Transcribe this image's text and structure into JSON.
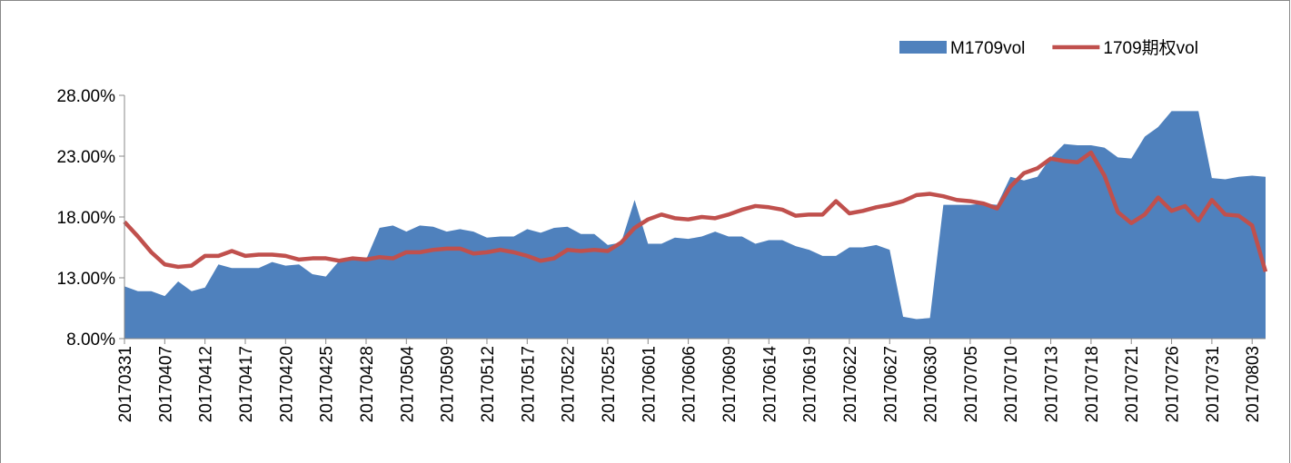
{
  "chart_data": {
    "type": "area-line",
    "categories": [
      "20170331",
      null,
      null,
      "20170407",
      null,
      null,
      "20170412",
      null,
      null,
      "20170417",
      null,
      null,
      "20170420",
      null,
      null,
      "20170425",
      null,
      null,
      "20170428",
      null,
      null,
      "20170504",
      null,
      null,
      "20170509",
      null,
      null,
      "20170512",
      null,
      null,
      "20170517",
      null,
      null,
      "20170522",
      null,
      null,
      "20170525",
      null,
      null,
      "20170601",
      null,
      null,
      "20170606",
      null,
      null,
      "20170609",
      null,
      null,
      "20170614",
      null,
      null,
      "20170619",
      null,
      null,
      "20170622",
      null,
      null,
      "20170627",
      null,
      null,
      "20170630",
      null,
      null,
      "20170705",
      null,
      null,
      "20170710",
      null,
      null,
      "20170713",
      null,
      null,
      "20170718",
      null,
      null,
      "20170721",
      null,
      null,
      "20170726",
      null,
      null,
      "20170731",
      null,
      null,
      "20170803",
      null
    ],
    "series": [
      {
        "name": "M1709vol",
        "color": "#4f81bd",
        "kind": "area",
        "values": [
          12.3,
          11.9,
          11.9,
          11.5,
          12.7,
          11.9,
          12.2,
          14.1,
          13.8,
          13.8,
          13.8,
          14.3,
          14.0,
          14.1,
          13.3,
          13.1,
          14.4,
          14.6,
          14.5,
          17.1,
          17.3,
          16.8,
          17.3,
          17.2,
          16.8,
          17.0,
          16.8,
          16.3,
          16.4,
          16.4,
          17.0,
          16.7,
          17.1,
          17.2,
          16.6,
          16.6,
          15.7,
          15.9,
          19.4,
          15.8,
          15.8,
          16.3,
          16.2,
          16.4,
          16.8,
          16.4,
          16.4,
          15.8,
          16.1,
          16.1,
          15.6,
          15.3,
          14.8,
          14.8,
          15.5,
          15.5,
          15.7,
          15.3,
          9.8,
          9.6,
          9.7,
          19.0,
          19.0,
          19.0,
          19.1,
          19.0,
          21.3,
          21.0,
          21.3,
          22.9,
          24.0,
          23.9,
          23.9,
          23.7,
          22.9,
          22.8,
          24.6,
          25.4,
          26.7,
          26.7,
          26.7,
          21.2,
          21.1,
          21.3,
          21.4,
          21.3
        ]
      },
      {
        "name": "1709期权vol",
        "color": "#c0504d",
        "kind": "line",
        "values": [
          17.6,
          16.4,
          15.1,
          14.1,
          13.9,
          14.0,
          14.8,
          14.8,
          15.2,
          14.8,
          14.9,
          14.9,
          14.8,
          14.5,
          14.6,
          14.6,
          14.4,
          14.6,
          14.5,
          14.7,
          14.6,
          15.1,
          15.1,
          15.3,
          15.4,
          15.4,
          15.0,
          15.1,
          15.3,
          15.1,
          14.8,
          14.4,
          14.6,
          15.3,
          15.2,
          15.3,
          15.2,
          15.9,
          17.1,
          17.8,
          18.2,
          17.9,
          17.8,
          18.0,
          17.9,
          18.2,
          18.6,
          18.9,
          18.8,
          18.6,
          18.1,
          18.2,
          18.2,
          19.3,
          18.3,
          18.5,
          18.8,
          19.0,
          19.3,
          19.8,
          19.9,
          19.7,
          19.4,
          19.3,
          19.1,
          18.7,
          20.5,
          21.6,
          22.0,
          22.8,
          22.6,
          22.5,
          23.3,
          21.4,
          18.4,
          17.5,
          18.2,
          19.6,
          18.5,
          18.9,
          17.7,
          19.4,
          18.2,
          18.1,
          17.3,
          13.5
        ]
      }
    ],
    "ylim": [
      8,
      28
    ],
    "yticks": [
      {
        "value": 8,
        "label": "8.00%"
      },
      {
        "value": 13,
        "label": "13.00%"
      },
      {
        "value": 18,
        "label": "18.00%"
      },
      {
        "value": 23,
        "label": "23.00%"
      },
      {
        "value": 28,
        "label": "28.00%"
      }
    ],
    "grid": false,
    "legend": "top-right"
  }
}
